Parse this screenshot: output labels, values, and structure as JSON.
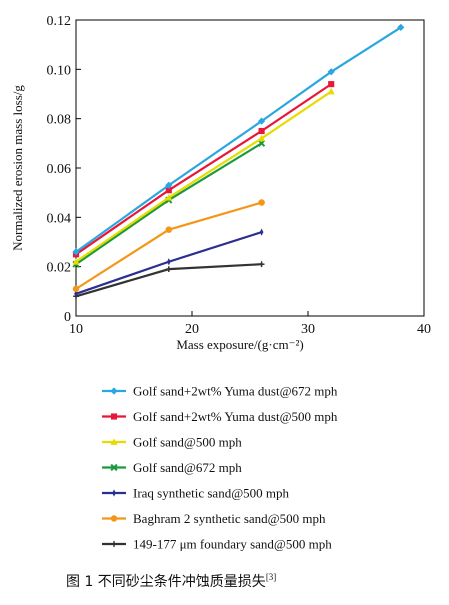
{
  "chart_data": {
    "type": "line",
    "title": "",
    "xlabel": "Mass exposure/(g·cm⁻²)",
    "ylabel": "Normalized erosion mass loss/g",
    "xlim": [
      10,
      40
    ],
    "ylim": [
      0,
      0.12
    ],
    "x_ticks": [
      10,
      20,
      30,
      40
    ],
    "x_tick_labels": [
      "10",
      "20",
      "30",
      "40"
    ],
    "y_ticks": [
      0,
      0.02,
      0.04,
      0.06,
      0.08,
      0.1,
      0.12
    ],
    "y_tick_labels": [
      "0",
      "0.02",
      "0.04",
      "0.06",
      "0.08",
      "0.10",
      "0.12"
    ],
    "grid": false,
    "legend_position": "below",
    "series": [
      {
        "name": "Golf sand+2wt% Yuma dust@672 mph",
        "color": "#2aa6e0",
        "marker": "diamond",
        "x": [
          10,
          18,
          26,
          32,
          38
        ],
        "y": [
          0.026,
          0.053,
          0.079,
          0.099,
          0.117
        ]
      },
      {
        "name": "Golf sand+2wt% Yuma dust@500 mph",
        "color": "#e8173a",
        "marker": "square",
        "x": [
          10,
          18,
          26,
          32
        ],
        "y": [
          0.025,
          0.051,
          0.075,
          0.094
        ]
      },
      {
        "name": "Golf sand@500 mph",
        "color": "#e6dc00",
        "marker": "triangle",
        "x": [
          10,
          18,
          26,
          32
        ],
        "y": [
          0.022,
          0.048,
          0.072,
          0.091
        ]
      },
      {
        "name": "Golf sand@672 mph",
        "color": "#1b9a3c",
        "marker": "x",
        "x": [
          10,
          18,
          26
        ],
        "y": [
          0.021,
          0.047,
          0.07
        ]
      },
      {
        "name": "Iraq synthetic sand@500 mph",
        "color": "#2b2f8f",
        "marker": "star",
        "x": [
          10,
          18,
          26
        ],
        "y": [
          0.009,
          0.022,
          0.034
        ]
      },
      {
        "name": "Baghram 2 synthetic sand@500 mph",
        "color": "#f29718",
        "marker": "circle",
        "x": [
          10,
          18,
          26
        ],
        "y": [
          0.011,
          0.035,
          0.046
        ]
      },
      {
        "name": "149-177 μm foundary sand@500 mph",
        "color": "#333333",
        "marker": "plus",
        "x": [
          10,
          18,
          26
        ],
        "y": [
          0.008,
          0.019,
          0.021
        ]
      }
    ]
  },
  "caption": {
    "text": "图 1   不同砂尘条件冲蚀质量损失",
    "ref": "[3]"
  }
}
